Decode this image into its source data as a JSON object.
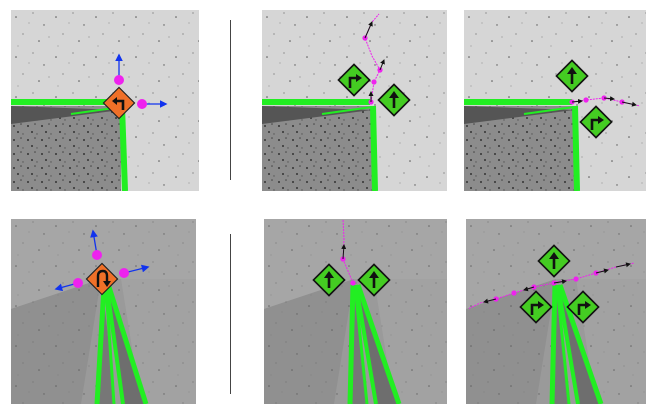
{
  "figure": {
    "rows": [
      {
        "name": "row-1",
        "panels": [
          {
            "name": "panel-top-left",
            "kind": "input",
            "sign": "turn-left-orange"
          },
          {
            "name": "panel-top-middle",
            "kind": "result",
            "signs": [
              "turn-right-green",
              "straight-green"
            ]
          },
          {
            "name": "panel-top-right",
            "kind": "result",
            "signs": [
              "straight-green",
              "turn-right-green"
            ]
          }
        ]
      },
      {
        "name": "row-2",
        "panels": [
          {
            "name": "panel-bottom-left",
            "kind": "input",
            "sign": "u-turn-orange"
          },
          {
            "name": "panel-bottom-middle",
            "kind": "result",
            "signs": [
              "straight-green",
              "straight-green"
            ]
          },
          {
            "name": "panel-bottom-right",
            "kind": "result",
            "signs": [
              "straight-green",
              "turn-right-green",
              "turn-right-green"
            ]
          }
        ]
      }
    ],
    "colors": {
      "road_green": "#22ee22",
      "trajectory_magenta": "#ee22ee",
      "axis_blue": "#1133ee",
      "sign_orange": "#f07028",
      "sign_green": "#44cc22",
      "ground_light": "#d6d6d6",
      "ground_dark": "#8a8a8a"
    }
  }
}
